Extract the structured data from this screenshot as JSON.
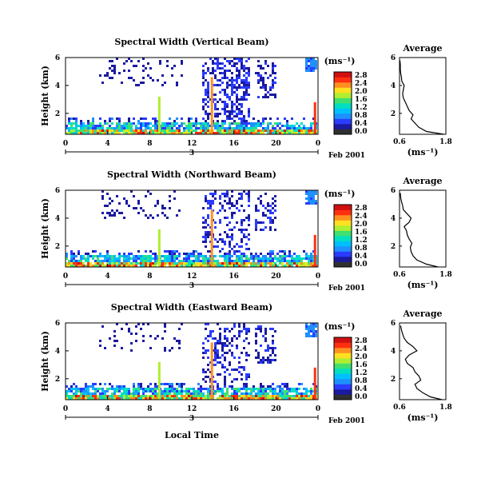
{
  "figure": {
    "xlabel": "Local Time",
    "date_label": "Feb 2001",
    "unit_label": "(ms⁻¹)"
  },
  "colorbar": {
    "ticks": [
      "0.0",
      "0.4",
      "0.8",
      "1.2",
      "1.6",
      "2.0",
      "2.4",
      "2.8"
    ],
    "colors": [
      "#303030",
      "#1a1aa0",
      "#2a3cff",
      "#1e90ff",
      "#00c0ff",
      "#00e0c0",
      "#40e070",
      "#b0ee30",
      "#ffe020",
      "#ff9020",
      "#ff3010",
      "#d01010"
    ]
  },
  "chart_data": [
    {
      "type": "heatmap",
      "title": "Spectral Width (Vertical Beam)",
      "xlabel": "",
      "ylabel": "Height (km)",
      "xlim": [
        0,
        24
      ],
      "ylim": [
        0.5,
        6
      ],
      "xticks": [
        "0",
        "4",
        "8",
        "12",
        "16",
        "20",
        "0"
      ],
      "yticks": [
        "2",
        "4",
        "6"
      ],
      "day_marker": "3",
      "colorbar_ticks": [
        "0.0",
        "0.4",
        "0.8",
        "1.2",
        "1.6",
        "2.0",
        "2.4",
        "2.8"
      ],
      "colorbar_unit": "(ms⁻¹)",
      "date": "Feb 2001",
      "profile": {
        "title": "Average",
        "xlabel": "(ms⁻¹)",
        "xlim": [
          0.6,
          1.8
        ],
        "ylim": [
          0.5,
          6
        ],
        "xticks": [
          "0.6",
          "1.8"
        ],
        "yticks": [
          "2",
          "4",
          "6"
        ],
        "height_km": [
          0.5,
          0.7,
          1.0,
          1.3,
          1.6,
          1.9,
          2.2,
          2.5,
          2.8,
          3.1,
          3.4,
          3.7,
          4.0,
          4.3,
          4.6,
          4.9,
          5.2,
          5.5,
          5.8
        ],
        "width_ms": [
          1.75,
          1.3,
          1.1,
          1.0,
          0.9,
          0.95,
          0.85,
          0.8,
          0.75,
          0.7,
          0.68,
          0.7,
          0.72,
          0.66,
          0.65,
          0.63,
          0.62,
          0.62,
          0.61
        ]
      }
    },
    {
      "type": "heatmap",
      "title": "Spectral Width (Northward Beam)",
      "xlabel": "",
      "ylabel": "Height (km)",
      "xlim": [
        0,
        24
      ],
      "ylim": [
        0.5,
        6
      ],
      "xticks": [
        "0",
        "4",
        "8",
        "12",
        "16",
        "20",
        "0"
      ],
      "yticks": [
        "2",
        "4",
        "6"
      ],
      "day_marker": "3",
      "colorbar_ticks": [
        "0.0",
        "0.4",
        "0.8",
        "1.2",
        "1.6",
        "2.0",
        "2.4",
        "2.8"
      ],
      "colorbar_unit": "(ms⁻¹)",
      "date": "Feb 2001",
      "profile": {
        "title": "Average",
        "xlabel": "(ms⁻¹)",
        "xlim": [
          0.6,
          1.8
        ],
        "ylim": [
          0.5,
          6
        ],
        "xticks": [
          "0.6",
          "1.8"
        ],
        "yticks": [
          "2",
          "4",
          "6"
        ],
        "height_km": [
          0.5,
          0.7,
          1.0,
          1.3,
          1.6,
          1.9,
          2.2,
          2.5,
          2.8,
          3.1,
          3.4,
          3.7,
          4.0,
          4.3,
          4.6,
          4.9,
          5.2,
          5.5,
          5.8
        ],
        "width_ms": [
          1.6,
          1.3,
          1.05,
          0.95,
          0.9,
          0.88,
          0.92,
          0.85,
          0.8,
          0.78,
          0.72,
          0.85,
          0.9,
          0.8,
          0.7,
          0.68,
          0.65,
          0.63,
          0.62
        ]
      }
    },
    {
      "type": "heatmap",
      "title": "Spectral Width (Eastward Beam)",
      "xlabel": "Local Time",
      "ylabel": "Height (km)",
      "xlim": [
        0,
        24
      ],
      "ylim": [
        0.5,
        6
      ],
      "xticks": [
        "0",
        "4",
        "8",
        "12",
        "16",
        "20",
        "0"
      ],
      "yticks": [
        "2",
        "4",
        "6"
      ],
      "day_marker": "3",
      "colorbar_ticks": [
        "0.0",
        "0.4",
        "0.8",
        "1.2",
        "1.6",
        "2.0",
        "2.4",
        "2.8"
      ],
      "colorbar_unit": "(ms⁻¹)",
      "date": "Feb 2001",
      "profile": {
        "title": "Average",
        "xlabel": "(ms⁻¹)",
        "xlim": [
          0.6,
          1.8
        ],
        "ylim": [
          0.5,
          6
        ],
        "xticks": [
          "0.6",
          "1.8"
        ],
        "yticks": [
          "2",
          "4",
          "6"
        ],
        "height_km": [
          0.5,
          0.7,
          1.0,
          1.3,
          1.6,
          1.9,
          2.2,
          2.5,
          2.8,
          3.1,
          3.4,
          3.7,
          4.0,
          4.3,
          4.6,
          4.9,
          5.2,
          5.5,
          5.8
        ],
        "width_ms": [
          1.7,
          1.4,
          1.2,
          1.05,
          1.0,
          1.15,
          1.1,
          1.0,
          0.95,
          0.8,
          0.75,
          0.85,
          1.05,
          0.95,
          0.8,
          0.72,
          0.68,
          0.65,
          0.63
        ]
      }
    }
  ]
}
